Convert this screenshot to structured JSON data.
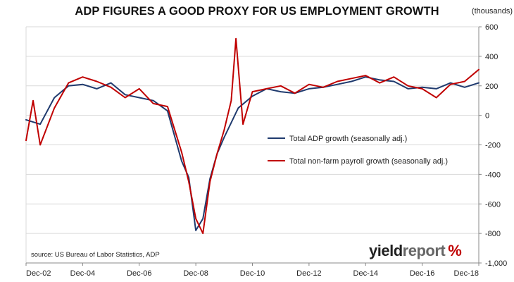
{
  "header": {
    "title": "ADP FIGURES A GOOD PROXY FOR US EMPLOYMENT GROWTH",
    "units": "(thousands)"
  },
  "source": "source: US Bureau of Labor Statistics, ADP",
  "logo": {
    "part1": "yield",
    "part2": "report",
    "symbol": "%"
  },
  "colors": {
    "adp": "#1f3a6e",
    "nfp": "#c00000",
    "grid": "#d9d9d9",
    "axis": "#888888"
  },
  "chart_data": {
    "type": "line",
    "title": "ADP FIGURES A GOOD PROXY FOR US EMPLOYMENT GROWTH",
    "ylabel": "(thousands)",
    "ylim": [
      -1000,
      600
    ],
    "yticks": [
      600,
      400,
      200,
      0,
      -200,
      -400,
      -600,
      -800,
      -1000
    ],
    "ytick_labels": [
      "600",
      "400",
      "200",
      "0",
      "-200",
      "-400",
      "-600",
      "-800",
      "-1,000"
    ],
    "xlim": [
      "Dec-02",
      "Dec-18"
    ],
    "xticks": [
      "Dec-02",
      "Dec-04",
      "Dec-06",
      "Dec-08",
      "Dec-10",
      "Dec-12",
      "Dec-14",
      "Dec-16",
      "Dec-18"
    ],
    "grid": "horizontal",
    "legend_position": "center-right",
    "series": [
      {
        "name": "Total ADP growth (seasonally adj.)",
        "color": "#1f3a6e",
        "x": [
          "Dec-02",
          "Jun-03",
          "Dec-03",
          "Jun-04",
          "Dec-04",
          "Jun-05",
          "Dec-05",
          "Jun-06",
          "Dec-06",
          "Jun-07",
          "Dec-07",
          "Jun-08",
          "Sep-08",
          "Dec-08",
          "Mar-09",
          "Jun-09",
          "Sep-09",
          "Dec-09",
          "Jun-10",
          "Dec-10",
          "Jun-11",
          "Dec-11",
          "Jun-12",
          "Dec-12",
          "Jun-13",
          "Dec-13",
          "Jun-14",
          "Dec-14",
          "Jun-15",
          "Dec-15",
          "Jun-16",
          "Dec-16",
          "Jun-17",
          "Dec-17",
          "Jun-18",
          "Dec-18"
        ],
        "values": [
          -30,
          -60,
          120,
          200,
          210,
          180,
          220,
          140,
          120,
          100,
          30,
          -310,
          -420,
          -780,
          -700,
          -430,
          -260,
          -150,
          50,
          130,
          180,
          160,
          150,
          180,
          190,
          210,
          230,
          260,
          240,
          230,
          180,
          190,
          180,
          220,
          190,
          220
        ]
      },
      {
        "name": "Total non-farm payroll growth (seasonally adj.)",
        "color": "#c00000",
        "x": [
          "Dec-02",
          "Mar-03",
          "Jun-03",
          "Dec-03",
          "Jun-04",
          "Dec-04",
          "Jun-05",
          "Dec-05",
          "Jun-06",
          "Dec-06",
          "Jun-07",
          "Dec-07",
          "Jun-08",
          "Sep-08",
          "Dec-08",
          "Mar-09",
          "Jun-09",
          "Sep-09",
          "Dec-09",
          "Mar-10",
          "May-10",
          "Aug-10",
          "Dec-10",
          "Jun-11",
          "Dec-11",
          "Jun-12",
          "Dec-12",
          "Jun-13",
          "Dec-13",
          "Jun-14",
          "Dec-14",
          "Jun-15",
          "Dec-15",
          "Jun-16",
          "Dec-16",
          "Jun-17",
          "Dec-17",
          "Jun-18",
          "Dec-18"
        ],
        "values": [
          -170,
          100,
          -200,
          50,
          220,
          260,
          230,
          190,
          120,
          180,
          80,
          60,
          -250,
          -450,
          -700,
          -800,
          -450,
          -260,
          -100,
          100,
          520,
          -60,
          160,
          180,
          200,
          150,
          210,
          190,
          230,
          250,
          270,
          220,
          260,
          200,
          180,
          120,
          210,
          230,
          310
        ]
      }
    ]
  }
}
